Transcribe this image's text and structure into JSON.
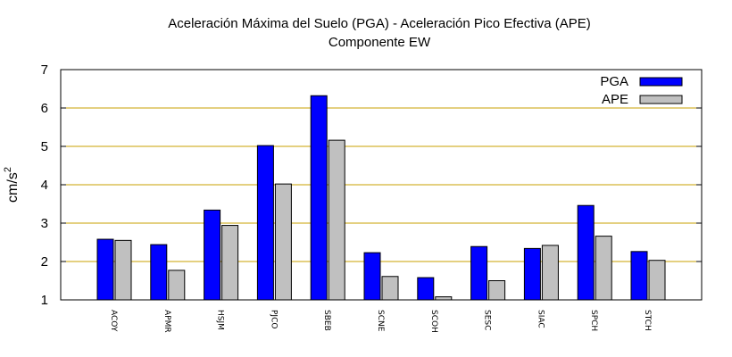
{
  "chart_data": {
    "type": "bar",
    "title_line1": "Aceleración Máxima del Suelo (PGA) -  Aceleración Pico Efectiva (APE)",
    "title_line2": "Componente EW",
    "xlabel": "",
    "ylabel": "cm/s",
    "ylabel_sup": "2",
    "ylim": [
      1,
      7
    ],
    "yticks": [
      "1",
      "2",
      "3",
      "4",
      "5",
      "6",
      "7"
    ],
    "grid": "horizontal",
    "grid_color": "#c8a000",
    "legend_position": "top-right",
    "categories": [
      "ACOY",
      "APMR",
      "HSJM",
      "PJCO",
      "SBEB",
      "SCNE",
      "SCOH",
      "SESC",
      "SIAC",
      "SPCH",
      "STCH"
    ],
    "series": [
      {
        "name": "PGA",
        "color": "#0000ff",
        "values": [
          2.58,
          2.44,
          3.34,
          5.02,
          6.32,
          2.23,
          1.58,
          2.39,
          2.34,
          3.46,
          2.26
        ]
      },
      {
        "name": "APE",
        "color": "#c0c0c0",
        "values": [
          2.55,
          1.77,
          2.94,
          4.02,
          5.16,
          1.61,
          1.08,
          1.5,
          2.42,
          2.66,
          2.03
        ]
      }
    ]
  }
}
